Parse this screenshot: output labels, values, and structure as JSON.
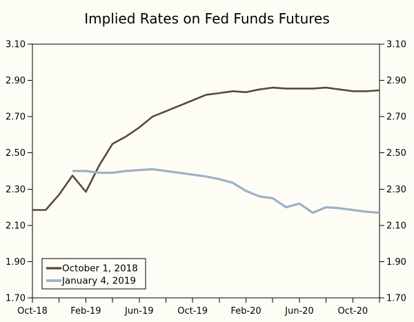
{
  "colors": {
    "background": "#FDFDF6",
    "axis": "#000000",
    "text": "#000000",
    "series1": "#55493C",
    "series2": "#9BB0C5"
  },
  "chart_data": {
    "type": "line",
    "title": "Implied Rates on Fed Funds Futures",
    "xlabel": "",
    "ylabel": "",
    "ylim": [
      1.7,
      3.1
    ],
    "ytick_step": 0.2,
    "yticks": [
      "3.10",
      "2.90",
      "2.70",
      "2.50",
      "2.30",
      "2.10",
      "1.90",
      "1.70"
    ],
    "y_axis_sides": "both",
    "grid": "off",
    "x_tick_every_months": 2,
    "x_labels": [
      "Oct-18",
      "Feb-19",
      "Jun-19",
      "Oct-19",
      "Feb-20",
      "Jun-20",
      "Oct-20"
    ],
    "months": [
      "Oct-18",
      "Nov-18",
      "Dec-18",
      "Jan-19",
      "Feb-19",
      "Mar-19",
      "Apr-19",
      "May-19",
      "Jun-19",
      "Jul-19",
      "Aug-19",
      "Sep-19",
      "Oct-19",
      "Nov-19",
      "Dec-19",
      "Jan-20",
      "Feb-20",
      "Mar-20",
      "Apr-20",
      "May-20",
      "Jun-20",
      "Jul-20",
      "Aug-20",
      "Sep-20",
      "Oct-20",
      "Nov-20",
      "Dec-20"
    ],
    "legend_position": "bottom-left",
    "series": [
      {
        "name": "October 1, 2018",
        "color": "#55493C",
        "width": 2.6,
        "start_month_index": 0,
        "values": [
          2.185,
          2.185,
          2.27,
          2.375,
          2.285,
          2.43,
          2.55,
          2.59,
          2.64,
          2.7,
          2.73,
          2.76,
          2.79,
          2.82,
          2.83,
          2.84,
          2.835,
          2.85,
          2.86,
          2.855,
          2.855,
          2.855,
          2.86,
          2.85,
          2.84,
          2.84,
          2.845
        ]
      },
      {
        "name": "January 4, 2019",
        "color": "#9BB0C5",
        "width": 3.2,
        "start_month_index": 3,
        "values": [
          2.4,
          2.4,
          2.39,
          2.39,
          2.4,
          2.405,
          2.41,
          2.4,
          2.39,
          2.38,
          2.37,
          2.355,
          2.335,
          2.29,
          2.26,
          2.25,
          2.2,
          2.22,
          2.17,
          2.2,
          2.195,
          2.185,
          2.175,
          2.17
        ]
      }
    ]
  }
}
